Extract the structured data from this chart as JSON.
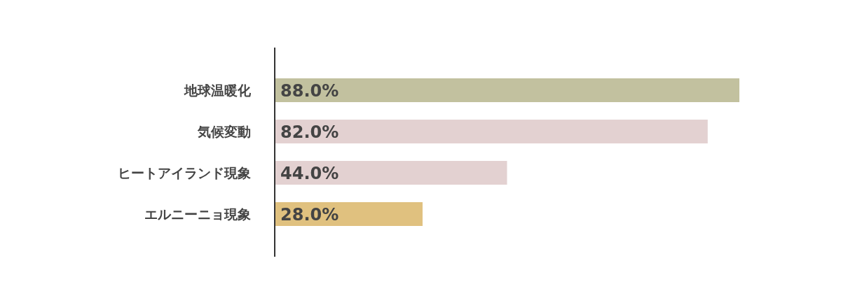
{
  "chart_data": {
    "type": "bar",
    "orientation": "horizontal",
    "categories": [
      "地球温暖化",
      "気候変動",
      "ヒートアイランド現象",
      "エルニーニョ現象"
    ],
    "values": [
      88,
      82,
      44,
      28
    ],
    "colors": [
      "#c2c19f",
      "#e3d1d1",
      "#e3d1d1",
      "#e0c17f"
    ],
    "value_labels": [
      "88.0%",
      "82.0%",
      "44.0%",
      "28.0%"
    ]
  }
}
